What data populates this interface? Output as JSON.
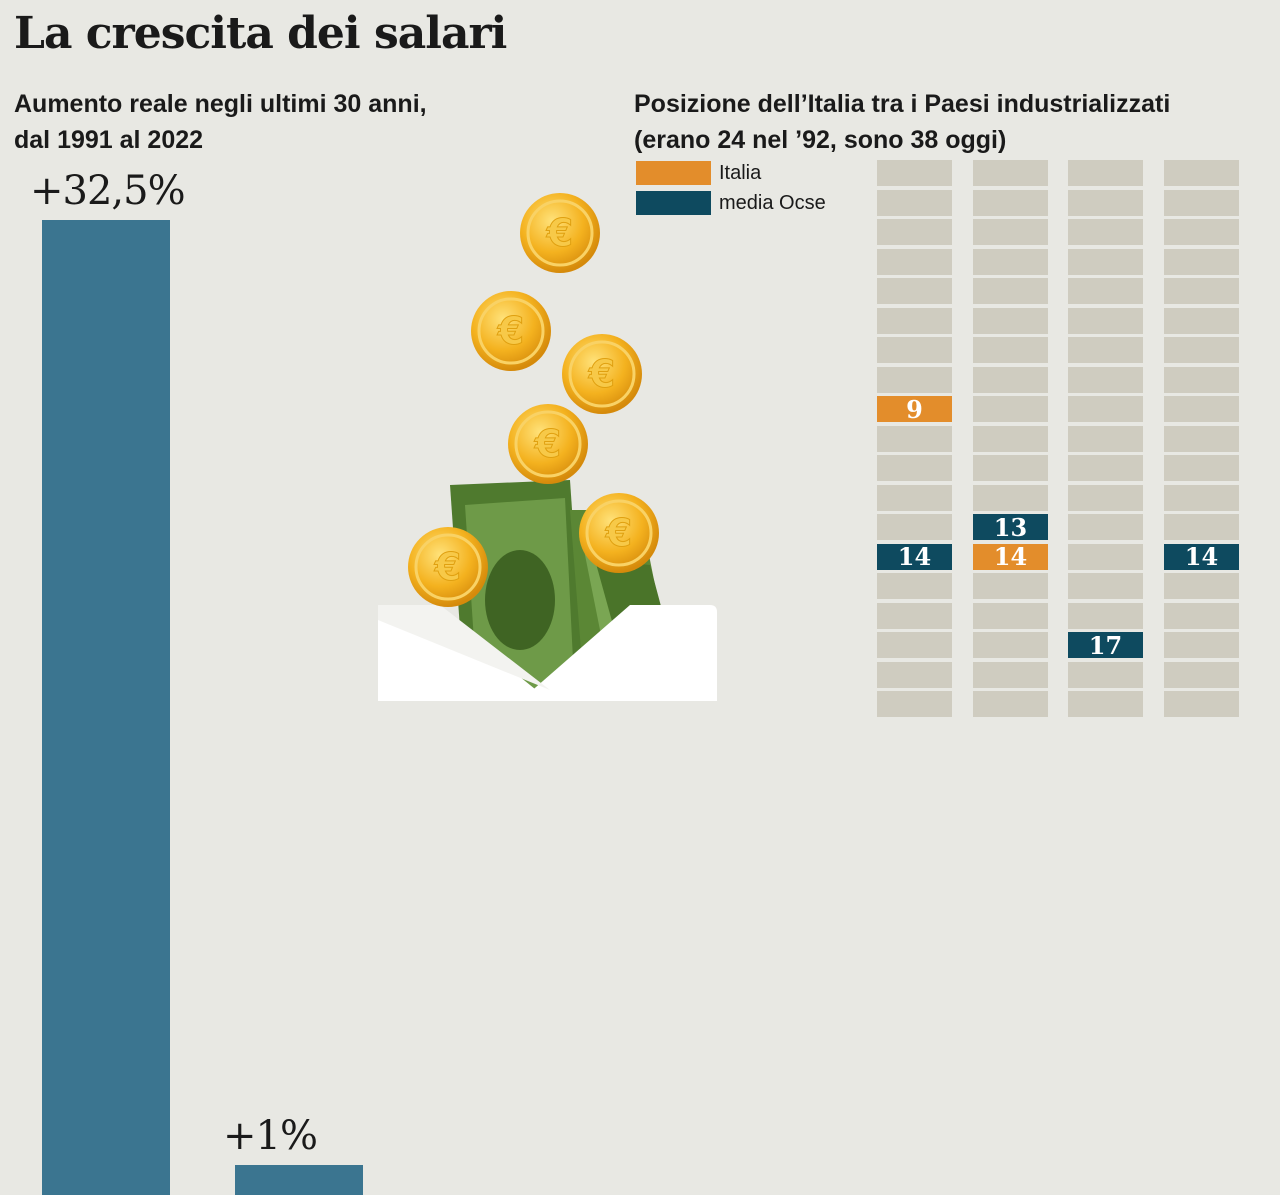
{
  "title": "La crescita dei salari",
  "left_panel": {
    "subtitle_lines": [
      "Aumento reale negli ultimi 30 anni,",
      "dal 1991 al 2022"
    ]
  },
  "right_panel": {
    "subtitle_lines": [
      "Posizione dell’Italia tra i Paesi industrializzati",
      "(erano 24 nel ’92, sono 38 oggi)"
    ],
    "legend": [
      {
        "label": "Italia",
        "color": "#e38d2b"
      },
      {
        "label": "media Ocse",
        "color": "#0e4a5f"
      }
    ]
  },
  "illustration": {
    "icons": [
      "euro-coin-icon",
      "banknote-icon",
      "envelope-icon"
    ]
  },
  "chart_data": [
    {
      "type": "bar",
      "title": "Aumento reale negli ultimi 30 anni, dal 1991 al 2022",
      "values": [
        32.5,
        1
      ],
      "value_labels": [
        "+32,5%",
        "+1%"
      ],
      "colors": [
        "#3b7590",
        "#3b7590"
      ],
      "ylim": [
        0,
        32.5
      ],
      "visible_crop_note": ""
    },
    {
      "type": "table",
      "title": "Posizione dell’Italia tra i Paesi industrializzati",
      "subtitle": "(erano 24 nel ’92, sono 38 oggi)",
      "columns": [
        {
          "italia": 9,
          "media_ocse": 14
        },
        {
          "italia": 14,
          "media_ocse": 13
        },
        {
          "italia": null,
          "media_ocse": 17
        },
        {
          "italia": null,
          "media_ocse": 14
        }
      ]
    }
  ]
}
